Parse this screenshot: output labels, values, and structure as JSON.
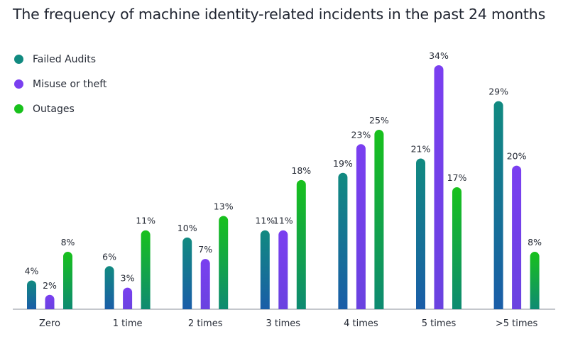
{
  "chart_data": {
    "type": "bar",
    "title": "The frequency of machine identity-related incidents in the past 24 months",
    "xlabel": "",
    "ylabel": "",
    "ylim": [
      0,
      34
    ],
    "grid": false,
    "legend_position": "top-left",
    "categories": [
      "Zero",
      "1 time",
      "2 times",
      "3 times",
      "4 times",
      "5 times",
      ">5 times"
    ],
    "series": [
      {
        "name": "Failed Audits",
        "values": [
          4,
          6,
          10,
          11,
          19,
          21,
          29
        ],
        "labels": [
          "4%",
          "6%",
          "10%",
          "11%",
          "19%",
          "21%",
          "29%"
        ],
        "color_top": "#118a80",
        "color_bottom": "#1a5da8"
      },
      {
        "name": "Misuse or theft",
        "values": [
          2,
          3,
          7,
          11,
          23,
          34,
          20
        ],
        "labels": [
          "2%",
          "3%",
          "7%",
          "11%",
          "23%",
          "34%",
          "20%"
        ],
        "color_top": "#7a3ff0",
        "color_bottom": "#6a42e0"
      },
      {
        "name": "Outages",
        "values": [
          8,
          11,
          13,
          18,
          25,
          17,
          8
        ],
        "labels": [
          "8%",
          "11%",
          "13%",
          "18%",
          "25%",
          "17%",
          "8%"
        ],
        "color_top": "#18c11c",
        "color_bottom": "#0e8a72"
      }
    ]
  }
}
